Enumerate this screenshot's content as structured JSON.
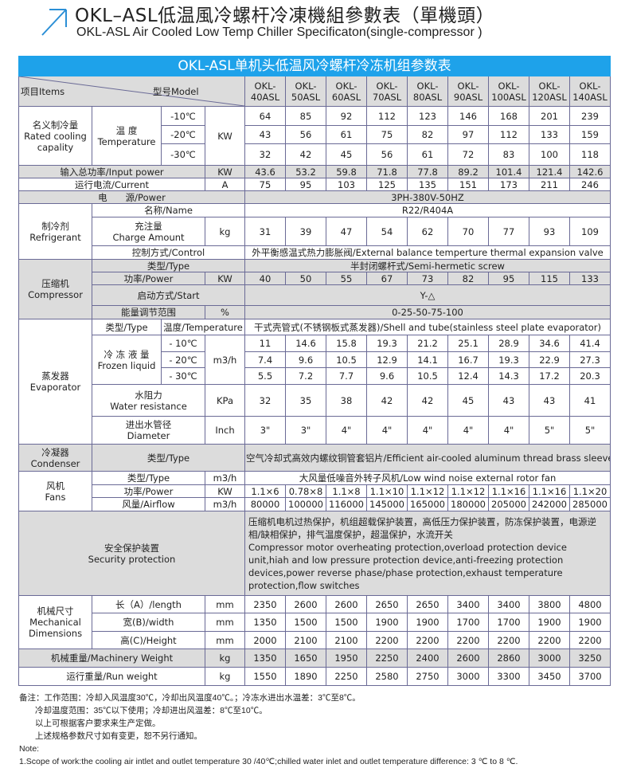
{
  "title": {
    "cn": "OKL–ASL低温風冷螺杆冷凍機組參數表（單機頭）",
    "en": "OKL-ASL Air Cooled Low Temp Chiller Specificaton(single-compressor )"
  },
  "colors": {
    "accent": "#1ea2ea",
    "grey_row": "#dcdcdc",
    "border": "#6a6a96"
  },
  "icons": {
    "title": "arrow-up-right-icon"
  },
  "table_title": "OKL-ASL单机头低温风冷螺杆冷冻机组参数表",
  "header": {
    "items": "项目Items",
    "model": "型号Model",
    "models": [
      [
        "OKL-",
        "40ASL"
      ],
      [
        "OKL-",
        "50ASL"
      ],
      [
        "OKL-",
        "60ASL"
      ],
      [
        "OKL-",
        "70ASL"
      ],
      [
        "OKL-",
        "80ASL"
      ],
      [
        "OKL-",
        "90ASL"
      ],
      [
        "OKL-",
        "100ASL"
      ],
      [
        "OKL-",
        "120ASL"
      ],
      [
        "OKL-",
        "140ASL"
      ]
    ]
  },
  "cooling": {
    "label": [
      "名义制冷量",
      "Rated cooling",
      "capality"
    ],
    "temp": [
      "温 度",
      "Temperature"
    ],
    "unit": "KW",
    "rows": [
      {
        "temp": "-10℃",
        "values": [
          "64",
          "85",
          "92",
          "112",
          "123",
          "146",
          "168",
          "201",
          "239"
        ]
      },
      {
        "temp": "-20℃",
        "values": [
          "43",
          "56",
          "61",
          "75",
          "82",
          "97",
          "112",
          "133",
          "159"
        ]
      },
      {
        "temp": "-30℃",
        "values": [
          "32",
          "42",
          "45",
          "56",
          "61",
          "72",
          "83",
          "100",
          "118"
        ]
      }
    ]
  },
  "input_power": {
    "label": "输入总功率/Input power",
    "unit": "KW",
    "values": [
      "43.6",
      "53.2",
      "59.8",
      "71.8",
      "77.8",
      "89.2",
      "101.4",
      "121.4",
      "142.6"
    ]
  },
  "current": {
    "label": "运行电流/Current",
    "unit": "A",
    "values": [
      "75",
      "95",
      "103",
      "125",
      "135",
      "151",
      "173",
      "211",
      "246"
    ]
  },
  "power_supply": {
    "label": "电　　源/Power",
    "value": "3PH-380V-50HZ"
  },
  "refrigerant": {
    "label": [
      "制冷剂",
      "Refrigerant"
    ],
    "name_label": "名称/Name",
    "name_value": "R22/R404A",
    "charge_label": [
      "充注量",
      "Charge Amount"
    ],
    "charge_unit": "kg",
    "charge_values": [
      "31",
      "39",
      "47",
      "54",
      "62",
      "70",
      "77",
      "93",
      "109"
    ],
    "control_label": "控制方式/Control",
    "control_value": "外平衡感温式热力膨胀阀/External balance temperture thermal expansion valve"
  },
  "compressor": {
    "label": [
      "压缩机",
      "Compressor"
    ],
    "type_label": "类型/Type",
    "type_value": "半封闭螺杆式/Semi-hermetic screw",
    "power_label": "功率/Power",
    "power_unit": "KW",
    "power_values": [
      "40",
      "50",
      "55",
      "67",
      "73",
      "82",
      "95",
      "115",
      "133"
    ],
    "start_label": "启动方式/Start",
    "start_value": "Y-△",
    "capacity_label": "能量调节范围",
    "capacity_unit": "%",
    "capacity_value": "0-25-50-75-100"
  },
  "evaporator": {
    "label": [
      "蒸发器",
      "Evaporator"
    ],
    "type_label": "类型/Type",
    "temp_label": "温度/Temperature",
    "type_value": "干式壳管式(不锈钢板式蒸发器)/Shell and tube(stainless steel plate evaporator)",
    "frozen_label": [
      "冷 冻 液 量",
      "Frozen liquid"
    ],
    "frozen_unit": "m3/h",
    "frozen_rows": [
      {
        "temp": "- 10℃",
        "values": [
          "11",
          "14.6",
          "15.8",
          "19.3",
          "21.2",
          "25.1",
          "28.9",
          "34.6",
          "41.4"
        ]
      },
      {
        "temp": "- 20℃",
        "values": [
          "7.4",
          "9.6",
          "10.5",
          "12.9",
          "14.1",
          "16.7",
          "19.3",
          "22.9",
          "27.3"
        ]
      },
      {
        "temp": "- 30℃",
        "values": [
          "5.5",
          "7.2",
          "7.7",
          "9.6",
          "10.5",
          "12.4",
          "14.3",
          "17.2",
          "20.3"
        ]
      }
    ],
    "water_label": [
      "水阻力",
      "Water resistance"
    ],
    "water_unit": "KPa",
    "water_values": [
      "32",
      "35",
      "38",
      "42",
      "42",
      "45",
      "43",
      "43",
      "41"
    ],
    "diameter_label": [
      "进出水管径",
      "Diameter"
    ],
    "diameter_unit": "Inch",
    "diameter_values": [
      "3\"",
      "3\"",
      "4\"",
      "4\"",
      "4\"",
      "4\"",
      "4\"",
      "5\"",
      "5\""
    ]
  },
  "condenser": {
    "label": [
      "冷凝器",
      "Condenser"
    ],
    "type_label": "类型/Type",
    "type_value": "空气冷却式高效内螺纹铜管套铝片/Efficient air-cooled aluminum thread brass sleeve"
  },
  "fans": {
    "label": [
      "风机",
      "Fans"
    ],
    "type_label": "类型/Type",
    "type_unit": "m3/h",
    "type_value": "大风量低噪音外转子风机/Low wind noise external rotor fan",
    "power_label": "功率/Power",
    "power_unit": "KW",
    "power_values": [
      "1.1×6",
      "0.78×8",
      "1.1×8",
      "1.1×10",
      "1.1×12",
      "1.1×12",
      "1.1×16",
      "1.1×16",
      "1.1×20"
    ],
    "airflow_label": "风量/Airflow",
    "airflow_unit": "m3/h",
    "airflow_values": [
      "80000",
      "100000",
      "116000",
      "145000",
      "165000",
      "180000",
      "205000",
      "242000",
      "285000"
    ]
  },
  "security": {
    "label": [
      "安全保护装置",
      "Security protection"
    ],
    "value_cn": "压缩机电机过热保护，机组超载保护装置，高低压力保护装置，防冻保护装置，电源逆相/缺相保护，排气温度保护，超温保护，水流开关",
    "value_en": "Compressor motor overheating protection,overload protection device unit,hiah and low pressure protection device,anti-freezing protection devices,power reverse phase/phase protection,exhaust temperature protection,flow switches"
  },
  "dimensions": {
    "label": [
      "机械尺寸",
      "Mechanical",
      "Dimensions"
    ],
    "rows": [
      {
        "label": "长（A）/length",
        "unit": "mm",
        "values": [
          "2350",
          "2600",
          "2600",
          "2650",
          "2650",
          "3400",
          "3400",
          "3800",
          "4800"
        ]
      },
      {
        "label": "宽(B)/width",
        "unit": "mm",
        "values": [
          "1350",
          "1500",
          "1500",
          "1900",
          "1900",
          "1700",
          "1700",
          "1900",
          "1900"
        ]
      },
      {
        "label": "高(C)/Height",
        "unit": "mm",
        "values": [
          "2000",
          "2100",
          "2100",
          "2200",
          "2200",
          "2200",
          "2200",
          "2200",
          "2200"
        ]
      }
    ]
  },
  "machinery_weight": {
    "label": "机械重量/Machinery Weight",
    "unit": "kg",
    "values": [
      "1350",
      "1650",
      "1950",
      "2250",
      "2400",
      "2600",
      "2860",
      "3000",
      "3250"
    ]
  },
  "run_weight": {
    "label": "运行重量/Run weight",
    "unit": "kg",
    "values": [
      "1550",
      "1890",
      "2250",
      "2580",
      "2750",
      "3000",
      "3300",
      "3450",
      "3700"
    ]
  },
  "notes": [
    "备注：工作范围：冷却入风温度30℃，冷却出风温度40℃。；冷冻水进出水温差：3℃至8℃。",
    "冷却温度范围：35℃以下使用；冷却进出风温差：8℃至10℃。",
    "以上可根据客户要求来生产定做。",
    "上述规格参数尺寸如有变更，恕不另行通知。",
    "Note:",
    "1.Scope of work:the cooling air intlet and  outlet temperature 30 /40℃;chilled water inlet and outlet temperature difference: 3 ℃ to 8 ℃."
  ]
}
